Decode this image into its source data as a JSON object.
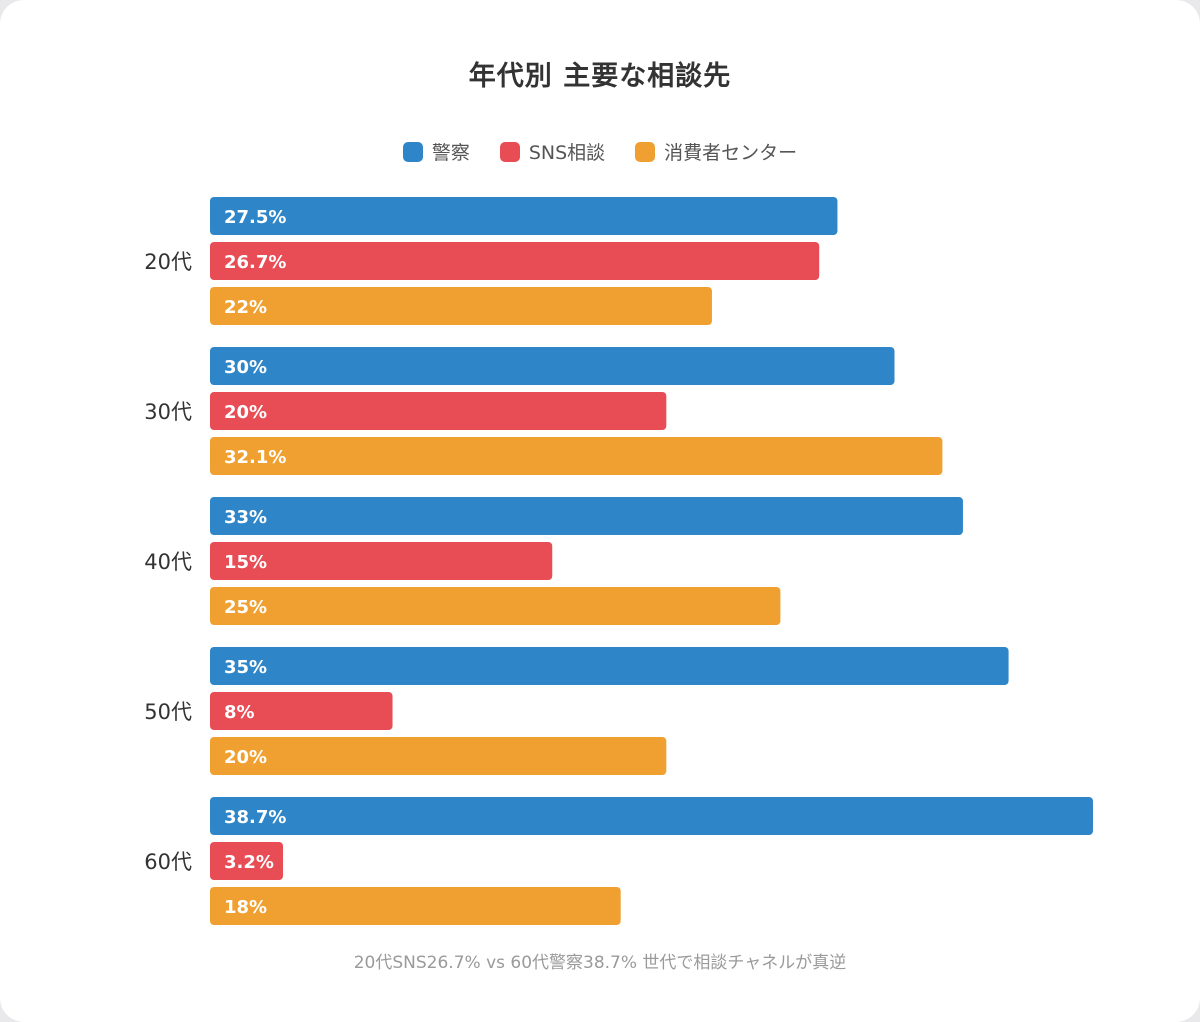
{
  "title": "年代別 主要な相談先",
  "footnote": "20代SNS26.7% vs 60代警察38.7% 世代で相談チャネルが真逆",
  "legend": [
    {
      "label": "警察",
      "color": "#2e86c8"
    },
    {
      "label": "SNS相談",
      "color": "#e84c55"
    },
    {
      "label": "消費者センター",
      "color": "#f0a030"
    }
  ],
  "chart_data": {
    "type": "bar",
    "orientation": "horizontal",
    "title": "年代別 主要な相談先",
    "categories": [
      "20代",
      "30代",
      "40代",
      "50代",
      "60代"
    ],
    "series": [
      {
        "name": "警察",
        "color": "#2e86c8",
        "values": [
          27.5,
          30,
          33,
          35,
          38.7
        ],
        "labels": [
          "27.5%",
          "30%",
          "33%",
          "35%",
          "38.7%"
        ]
      },
      {
        "name": "SNS相談",
        "color": "#e84c55",
        "values": [
          26.7,
          20,
          15,
          8,
          3.2
        ],
        "labels": [
          "26.7%",
          "20%",
          "15%",
          "8%",
          "3.2%"
        ]
      },
      {
        "name": "消費者センター",
        "color": "#f0a030",
        "values": [
          22,
          32.1,
          25,
          20,
          18
        ],
        "labels": [
          "22%",
          "32.1%",
          "25%",
          "20%",
          "18%"
        ]
      }
    ],
    "xlim": [
      0,
      38.7
    ],
    "grid": false,
    "legend_position": "top-center"
  }
}
